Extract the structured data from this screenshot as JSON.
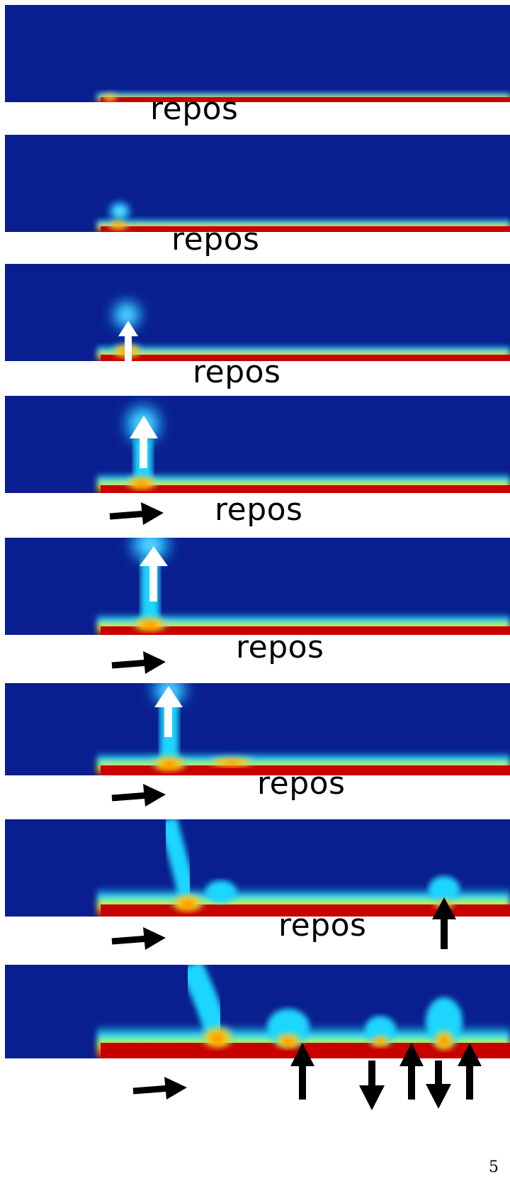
{
  "panels": [
    {
      "label": "repos"
    },
    {
      "label": "repos"
    },
    {
      "label": "repos"
    },
    {
      "label": "repos"
    },
    {
      "label": "repos"
    },
    {
      "label": "repos"
    },
    {
      "label": "repos"
    },
    {
      "label": ""
    }
  ],
  "page_number": "5",
  "colors": {
    "background": "#0a1f8f",
    "mid": "#1fd6ff",
    "hot": "#ffb000",
    "wall": "#c80000",
    "arrow_up_white": "#ffffff",
    "arrow_black": "#000000"
  }
}
